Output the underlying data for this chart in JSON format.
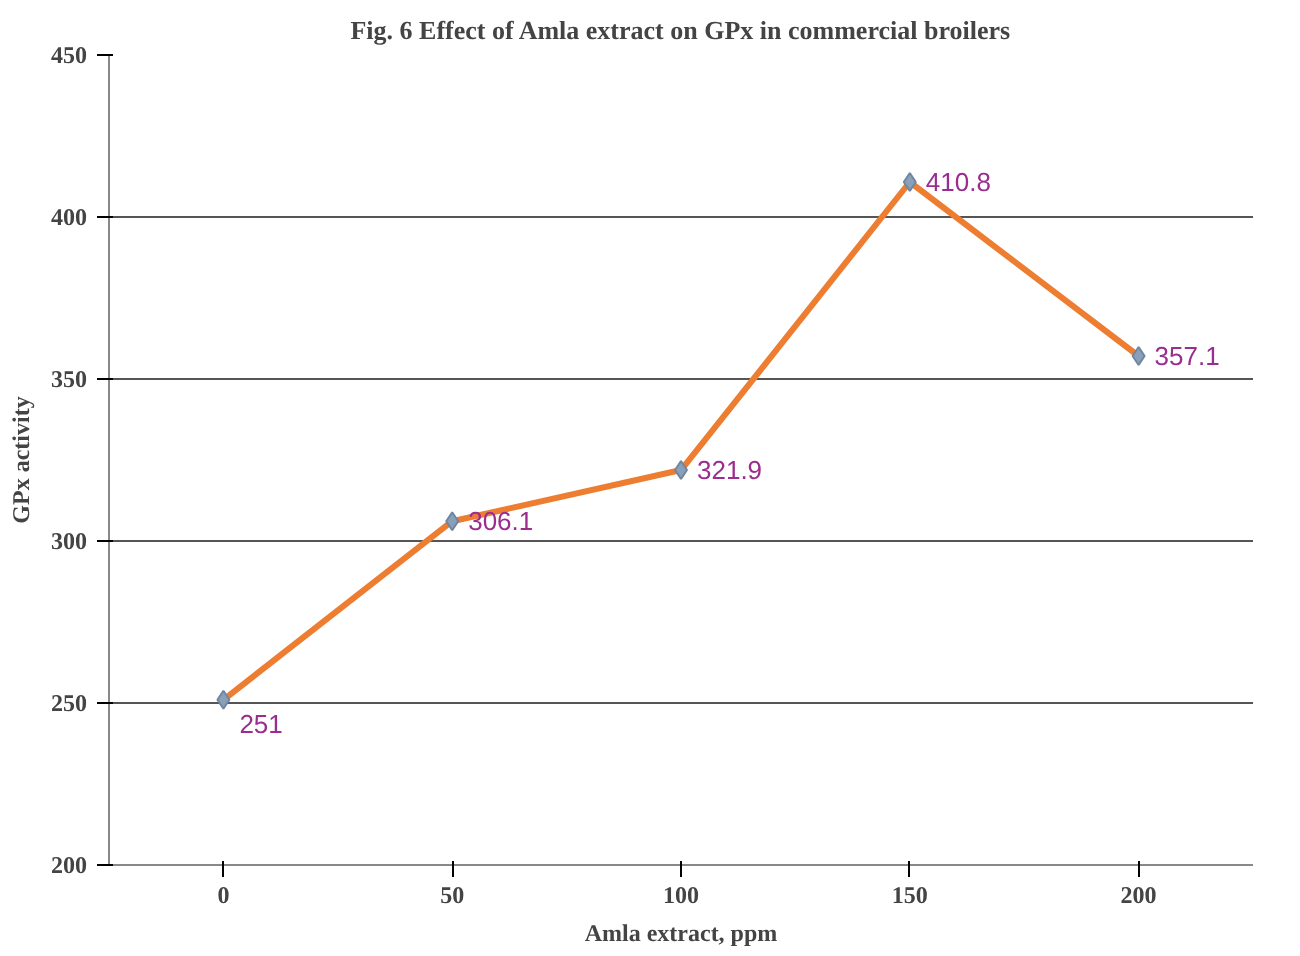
{
  "chart_data": {
    "type": "line",
    "title": "Fig. 6 Effect of Amla extract on GPx in commercial broilers",
    "xlabel": "Amla extract, ppm",
    "ylabel": "GPx activity",
    "categories": [
      "0",
      "50",
      "100",
      "150",
      "200"
    ],
    "series": [
      {
        "color": "#ed7d31",
        "values": [
          251,
          306.1,
          321.9,
          410.8,
          357.1
        ]
      }
    ],
    "ylim": [
      200,
      450
    ],
    "yticks": [
      200,
      250,
      300,
      350,
      400,
      450
    ],
    "grid": "y",
    "marker": "diamond",
    "line_style": "solid",
    "data_labels": true
  }
}
